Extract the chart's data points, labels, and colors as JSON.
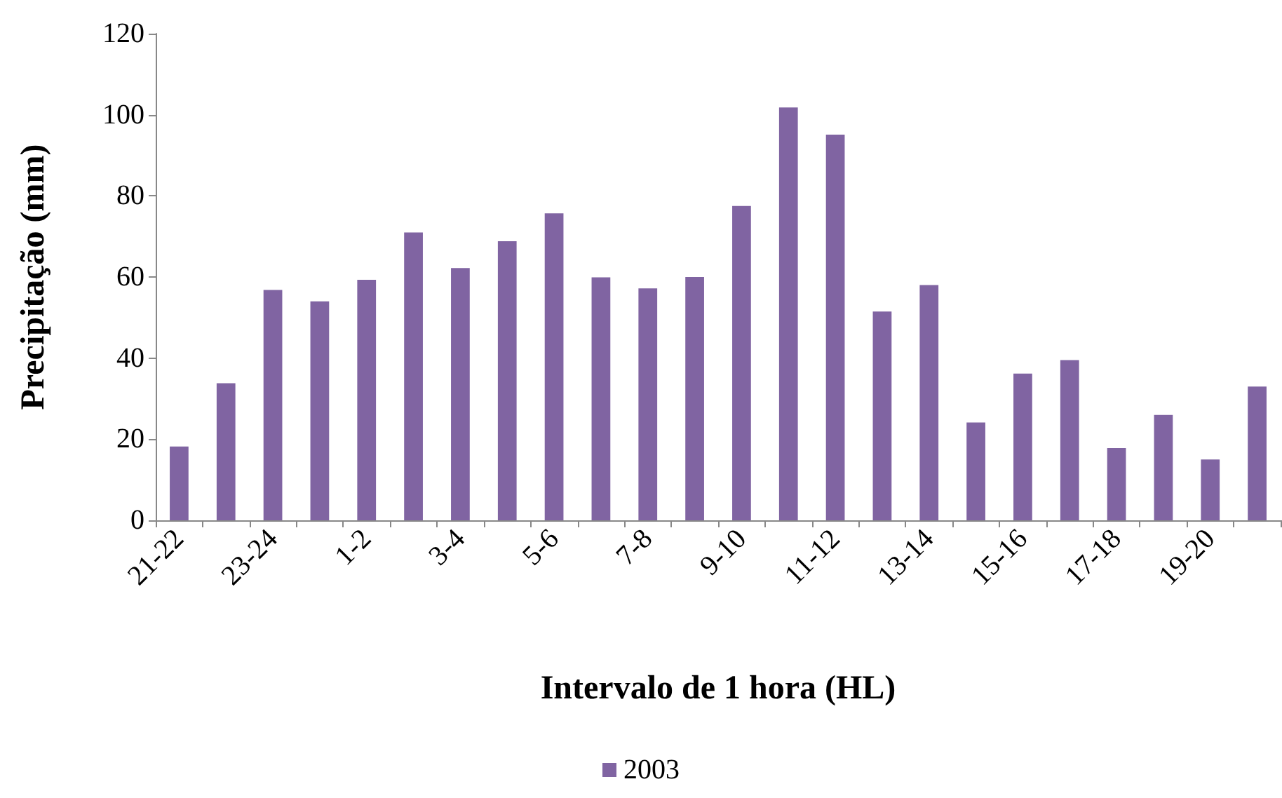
{
  "chart_data": {
    "type": "bar",
    "xlabel": "Intervalo de 1 hora (HL)",
    "ylabel": "Precipitação (mm)",
    "categories": [
      "21-22",
      null,
      "23-24",
      null,
      "1-2",
      null,
      "3-4",
      null,
      "5-6",
      null,
      "7-8",
      null,
      "9-10",
      null,
      "11-12",
      null,
      "13-14",
      null,
      "15-16",
      null,
      "17-18",
      null,
      "19-20",
      null
    ],
    "series": [
      {
        "name": "2003",
        "color": "#8064a2",
        "values": [
          18.2,
          33.8,
          56.8,
          54,
          59.3,
          71,
          62.2,
          68.8,
          75.7,
          59.9,
          57.2,
          60,
          77.5,
          101.8,
          95.1,
          51.5,
          58,
          24.1,
          36.2,
          39.5,
          17.8,
          26,
          15,
          33
        ]
      }
    ],
    "ylim": [
      0,
      120
    ],
    "yticks": [
      0,
      20,
      40,
      60,
      80,
      100,
      120
    ],
    "grid": false,
    "legend": "bottom"
  }
}
